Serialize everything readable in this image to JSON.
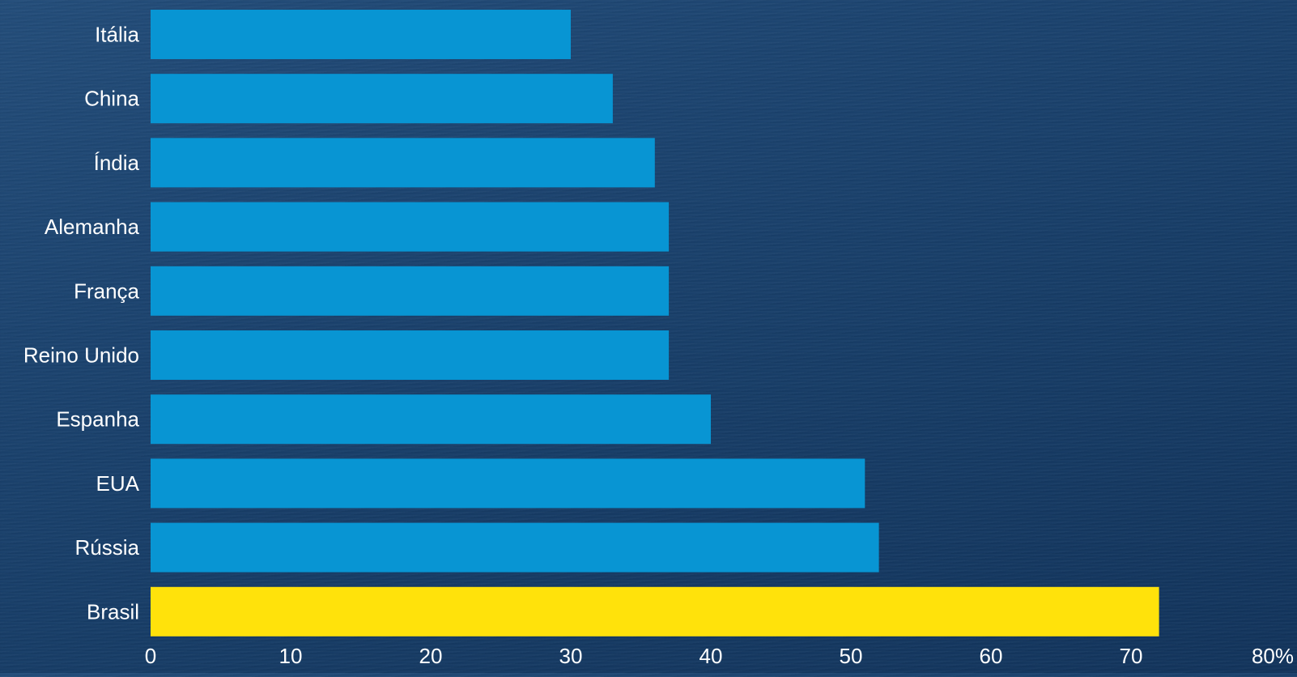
{
  "chart_data": {
    "type": "bar",
    "orientation": "horizontal",
    "categories": [
      "Itália",
      "China",
      "Índia",
      "Alemanha",
      "França",
      "Reino Unido",
      "Espanha",
      "EUA",
      "Rússia",
      "Brasil"
    ],
    "values": [
      30,
      33,
      36,
      37,
      37,
      37,
      40,
      51,
      52,
      72
    ],
    "x_ticks": [
      "0",
      "10",
      "20",
      "30",
      "40",
      "50",
      "60",
      "70",
      "80%"
    ],
    "xlim": [
      0,
      80
    ],
    "title": "",
    "xlabel": "",
    "ylabel": "",
    "grid": false,
    "legend": "none",
    "colors": {
      "default": "#0895d3",
      "highlight": "#ffe20b",
      "highlight_category": "Brasil",
      "text": "#ffffff"
    }
  }
}
